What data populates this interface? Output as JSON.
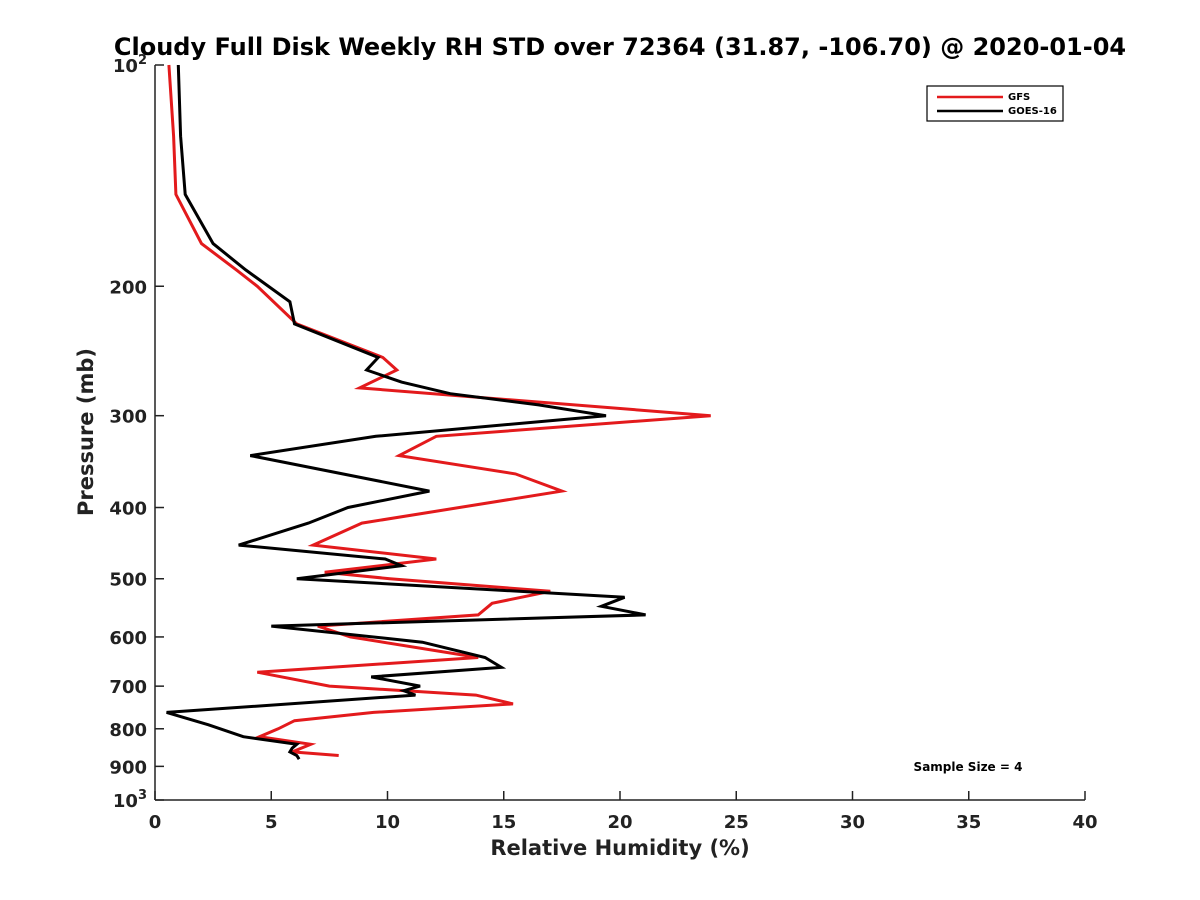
{
  "chart_data": {
    "type": "line",
    "title": "Cloudy Full Disk Weekly RH STD over 72364 (31.87, -106.70) @ 2020-01-04",
    "xlabel": "Relative Humidity (%)",
    "ylabel": "Pressure (mb)",
    "xlim": [
      0,
      40
    ],
    "ylim": [
      100,
      1000
    ],
    "yscale": "log",
    "y_reversed": true,
    "xticks": [
      0,
      5,
      10,
      15,
      20,
      25,
      30,
      35,
      40
    ],
    "yticks": [
      {
        "value": 100,
        "base": "10",
        "exp": "2"
      },
      {
        "value": 200,
        "label": "200"
      },
      {
        "value": 300,
        "label": "300"
      },
      {
        "value": 400,
        "label": "400"
      },
      {
        "value": 500,
        "label": "500"
      },
      {
        "value": 600,
        "label": "600"
      },
      {
        "value": 700,
        "label": "700"
      },
      {
        "value": 800,
        "label": "800"
      },
      {
        "value": 900,
        "label": "900"
      },
      {
        "value": 1000,
        "base": "10",
        "exp": "3"
      }
    ],
    "grid": false,
    "legend_position": "top-right",
    "annotation": "Sample Size = 4",
    "series": [
      {
        "name": "GFS",
        "color": "#e31a1c",
        "points": [
          [
            0.6,
            100
          ],
          [
            0.8,
            125
          ],
          [
            0.9,
            150
          ],
          [
            2.0,
            175
          ],
          [
            3.5,
            190
          ],
          [
            4.4,
            200
          ],
          [
            6.1,
            225
          ],
          [
            9.8,
            250
          ],
          [
            10.4,
            260
          ],
          [
            8.8,
            275
          ],
          [
            23.9,
            300
          ],
          [
            12.1,
            320
          ],
          [
            10.5,
            340
          ],
          [
            15.5,
            360
          ],
          [
            17.5,
            380
          ],
          [
            8.9,
            420
          ],
          [
            6.8,
            450
          ],
          [
            12.1,
            470
          ],
          [
            7.3,
            490
          ],
          [
            10.1,
            500
          ],
          [
            17.0,
            520
          ],
          [
            14.5,
            540
          ],
          [
            13.9,
            560
          ],
          [
            7.0,
            580
          ],
          [
            8.4,
            600
          ],
          [
            13.9,
            640
          ],
          [
            4.4,
            670
          ],
          [
            7.5,
            700
          ],
          [
            13.8,
            720
          ],
          [
            15.4,
            740
          ],
          [
            9.4,
            760
          ],
          [
            6.0,
            780
          ],
          [
            5.3,
            800
          ],
          [
            4.5,
            820
          ],
          [
            6.7,
            840
          ],
          [
            5.9,
            860
          ],
          [
            7.9,
            870
          ]
        ]
      },
      {
        "name": "GOES-16",
        "color": "#000000",
        "points": [
          [
            1.0,
            100
          ],
          [
            1.1,
            125
          ],
          [
            1.3,
            150
          ],
          [
            2.5,
            175
          ],
          [
            3.9,
            190
          ],
          [
            5.8,
            210
          ],
          [
            6.0,
            225
          ],
          [
            9.6,
            250
          ],
          [
            9.1,
            260
          ],
          [
            10.6,
            270
          ],
          [
            12.7,
            280
          ],
          [
            16.5,
            290
          ],
          [
            19.4,
            300
          ],
          [
            9.5,
            320
          ],
          [
            4.1,
            340
          ],
          [
            11.8,
            380
          ],
          [
            8.3,
            400
          ],
          [
            6.6,
            420
          ],
          [
            3.6,
            450
          ],
          [
            9.9,
            470
          ],
          [
            10.6,
            480
          ],
          [
            6.1,
            500
          ],
          [
            20.2,
            530
          ],
          [
            19.2,
            545
          ],
          [
            21.1,
            560
          ],
          [
            5.0,
            580
          ],
          [
            11.5,
            610
          ],
          [
            14.2,
            640
          ],
          [
            14.9,
            660
          ],
          [
            9.3,
            680
          ],
          [
            11.4,
            700
          ],
          [
            10.7,
            710
          ],
          [
            11.2,
            720
          ],
          [
            0.5,
            760
          ],
          [
            2.3,
            790
          ],
          [
            3.8,
            820
          ],
          [
            6.1,
            840
          ],
          [
            5.9,
            850
          ],
          [
            5.8,
            860
          ],
          [
            6.1,
            870
          ],
          [
            6.2,
            880
          ]
        ]
      }
    ]
  }
}
